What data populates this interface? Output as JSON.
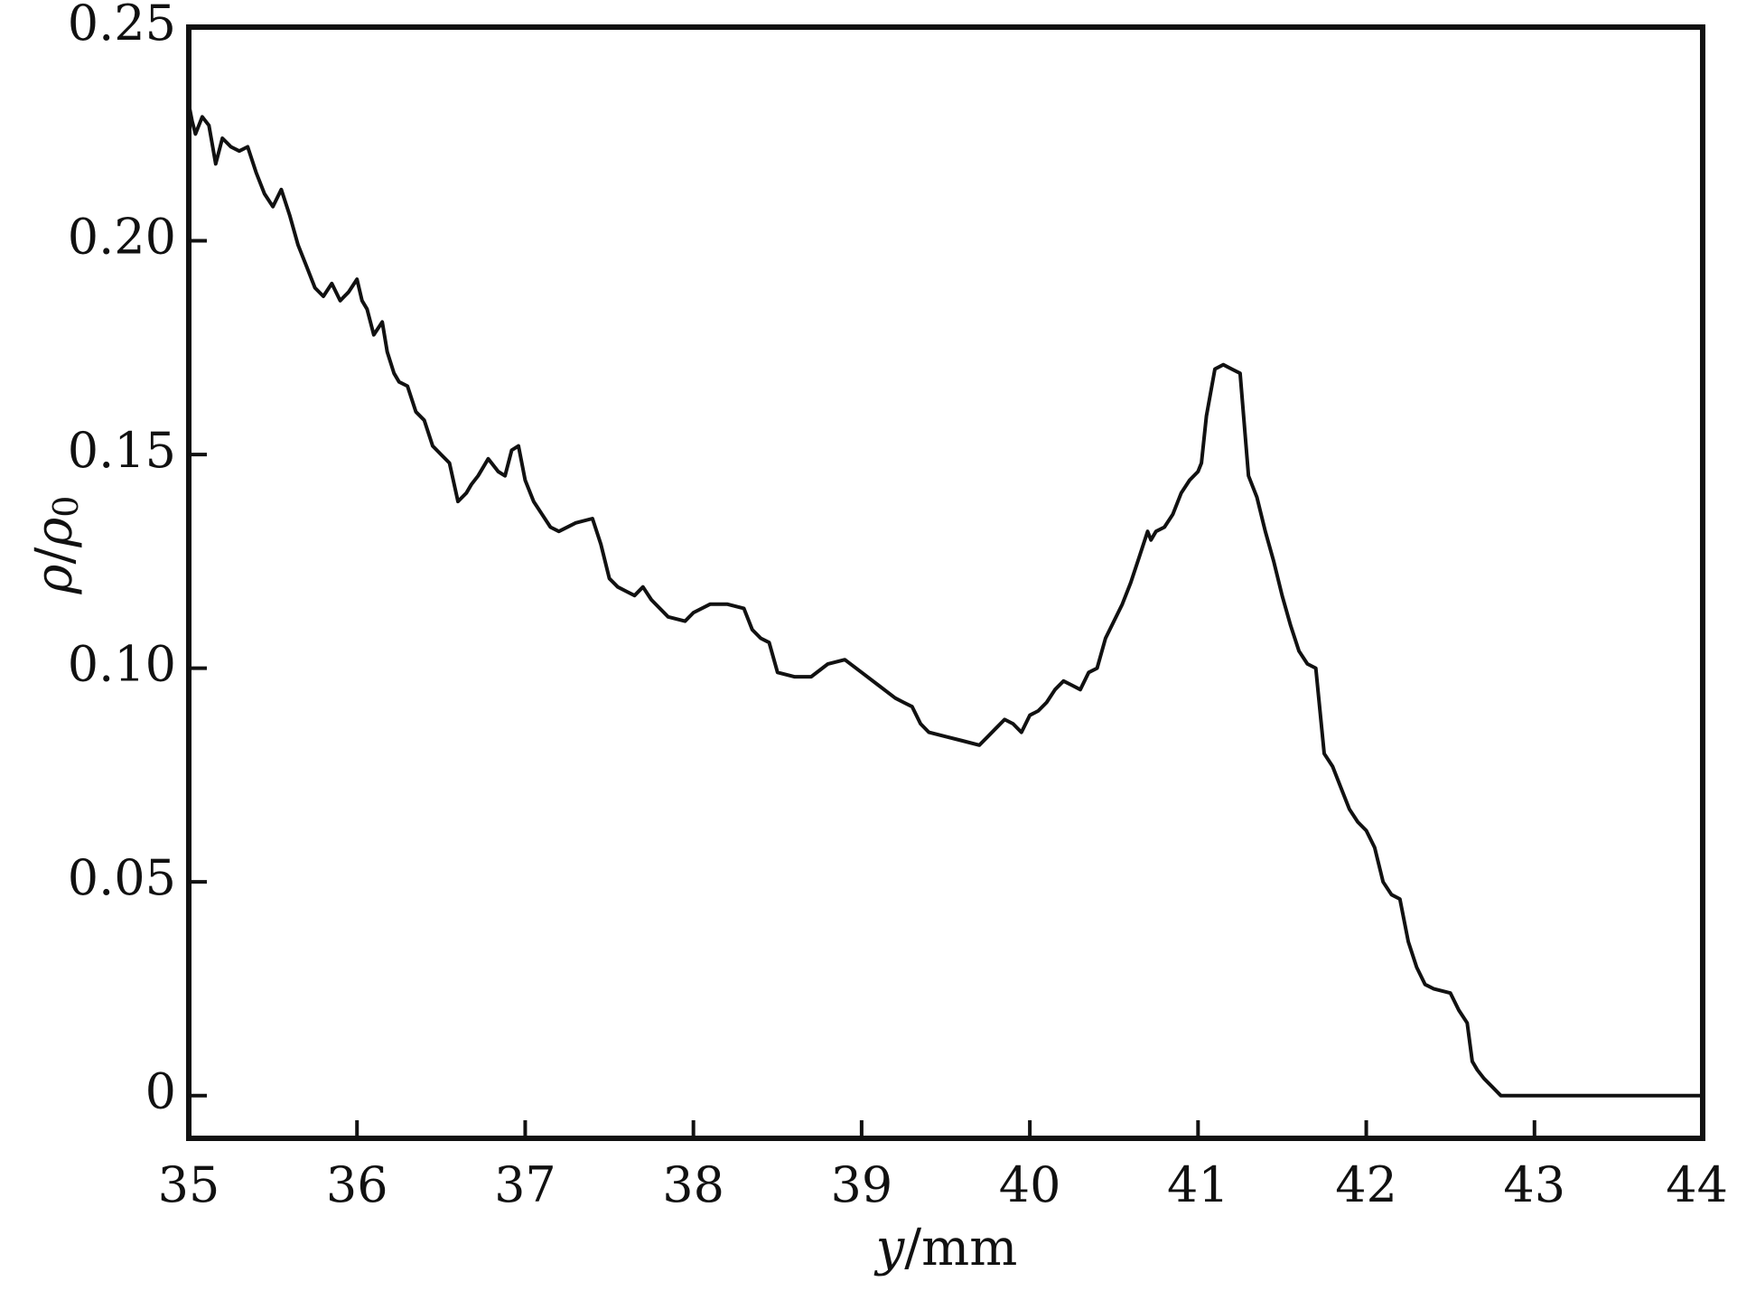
{
  "chart_data": {
    "type": "line",
    "title": "",
    "xlabel": {
      "var": "y",
      "unit": "/mm"
    },
    "ylabel": {
      "num": "ρ",
      "slash": "/",
      "den": "ρ",
      "sub": "0"
    },
    "xlim": [
      35,
      44
    ],
    "ylim": [
      -0.01,
      0.25
    ],
    "grid": false,
    "legend": "none",
    "line_color": "#111111",
    "x_ticks": [
      {
        "v": 35,
        "label": "35"
      },
      {
        "v": 36,
        "label": "36"
      },
      {
        "v": 37,
        "label": "37"
      },
      {
        "v": 38,
        "label": "38"
      },
      {
        "v": 39,
        "label": "39"
      },
      {
        "v": 40,
        "label": "40"
      },
      {
        "v": 41,
        "label": "41"
      },
      {
        "v": 42,
        "label": "42"
      },
      {
        "v": 43,
        "label": "43"
      },
      {
        "v": 44,
        "label": "44"
      }
    ],
    "y_ticks": [
      {
        "v": 0,
        "label": "0"
      },
      {
        "v": 0.05,
        "label": "0.05"
      },
      {
        "v": 0.1,
        "label": "0.10"
      },
      {
        "v": 0.15,
        "label": "0.15"
      },
      {
        "v": 0.2,
        "label": "0.20"
      },
      {
        "v": 0.25,
        "label": "0.25"
      }
    ],
    "series": [
      {
        "x": [
          35.0,
          35.02,
          35.04,
          35.08,
          35.12,
          35.16,
          35.2,
          35.25,
          35.3,
          35.35,
          35.4,
          35.45,
          35.5,
          35.55,
          35.6,
          35.65,
          35.7,
          35.75,
          35.8,
          35.85,
          35.9,
          35.95,
          36.0,
          36.03,
          36.06,
          36.1,
          36.15,
          36.18,
          36.22,
          36.25,
          36.3,
          36.35,
          36.4,
          36.45,
          36.5,
          36.55,
          36.6,
          36.65,
          36.68,
          36.72,
          36.78,
          36.84,
          36.88,
          36.92,
          36.96,
          37.0,
          37.05,
          37.1,
          37.15,
          37.2,
          37.3,
          37.4,
          37.45,
          37.5,
          37.55,
          37.6,
          37.65,
          37.7,
          37.75,
          37.85,
          37.95,
          38.0,
          38.1,
          38.2,
          38.3,
          38.35,
          38.4,
          38.45,
          38.5,
          38.6,
          38.7,
          38.8,
          38.9,
          39.0,
          39.1,
          39.2,
          39.25,
          39.3,
          39.35,
          39.4,
          39.5,
          39.6,
          39.7,
          39.75,
          39.8,
          39.85,
          39.9,
          39.95,
          40.0,
          40.05,
          40.1,
          40.15,
          40.2,
          40.25,
          40.3,
          40.35,
          40.4,
          40.45,
          40.5,
          40.55,
          40.6,
          40.65,
          40.7,
          40.72,
          40.75,
          40.8,
          40.85,
          40.9,
          40.95,
          41.0,
          41.02,
          41.05,
          41.1,
          41.15,
          41.2,
          41.25,
          41.3,
          41.35,
          41.4,
          41.45,
          41.5,
          41.55,
          41.6,
          41.65,
          41.7,
          41.75,
          41.8,
          41.85,
          41.9,
          41.95,
          42.0,
          42.05,
          42.1,
          42.15,
          42.2,
          42.25,
          42.3,
          42.35,
          42.4,
          42.5,
          42.55,
          42.6,
          42.63,
          42.66,
          42.7,
          42.75,
          42.8,
          42.83,
          42.86,
          43.0,
          43.5,
          44.0
        ],
        "y": [
          0.232,
          0.228,
          0.225,
          0.229,
          0.227,
          0.218,
          0.224,
          0.222,
          0.221,
          0.222,
          0.216,
          0.211,
          0.208,
          0.212,
          0.206,
          0.199,
          0.194,
          0.189,
          0.187,
          0.19,
          0.186,
          0.188,
          0.191,
          0.186,
          0.184,
          0.178,
          0.181,
          0.174,
          0.169,
          0.167,
          0.166,
          0.16,
          0.158,
          0.152,
          0.15,
          0.148,
          0.139,
          0.141,
          0.143,
          0.145,
          0.149,
          0.146,
          0.145,
          0.151,
          0.152,
          0.144,
          0.139,
          0.136,
          0.133,
          0.132,
          0.134,
          0.135,
          0.129,
          0.121,
          0.119,
          0.118,
          0.117,
          0.119,
          0.116,
          0.112,
          0.111,
          0.113,
          0.115,
          0.115,
          0.114,
          0.109,
          0.107,
          0.106,
          0.099,
          0.098,
          0.098,
          0.101,
          0.102,
          0.099,
          0.096,
          0.093,
          0.092,
          0.091,
          0.087,
          0.085,
          0.084,
          0.083,
          0.082,
          0.084,
          0.086,
          0.088,
          0.087,
          0.085,
          0.089,
          0.09,
          0.092,
          0.095,
          0.097,
          0.096,
          0.095,
          0.099,
          0.1,
          0.107,
          0.111,
          0.115,
          0.12,
          0.126,
          0.132,
          0.13,
          0.132,
          0.133,
          0.136,
          0.141,
          0.144,
          0.146,
          0.148,
          0.159,
          0.17,
          0.171,
          0.17,
          0.169,
          0.145,
          0.14,
          0.132,
          0.125,
          0.117,
          0.11,
          0.104,
          0.101,
          0.1,
          0.08,
          0.077,
          0.072,
          0.067,
          0.064,
          0.062,
          0.058,
          0.05,
          0.047,
          0.046,
          0.036,
          0.03,
          0.026,
          0.025,
          0.024,
          0.02,
          0.017,
          0.008,
          0.006,
          0.004,
          0.002,
          0.0,
          0.0,
          0.0,
          0.0,
          0.0,
          0.0
        ]
      }
    ]
  }
}
